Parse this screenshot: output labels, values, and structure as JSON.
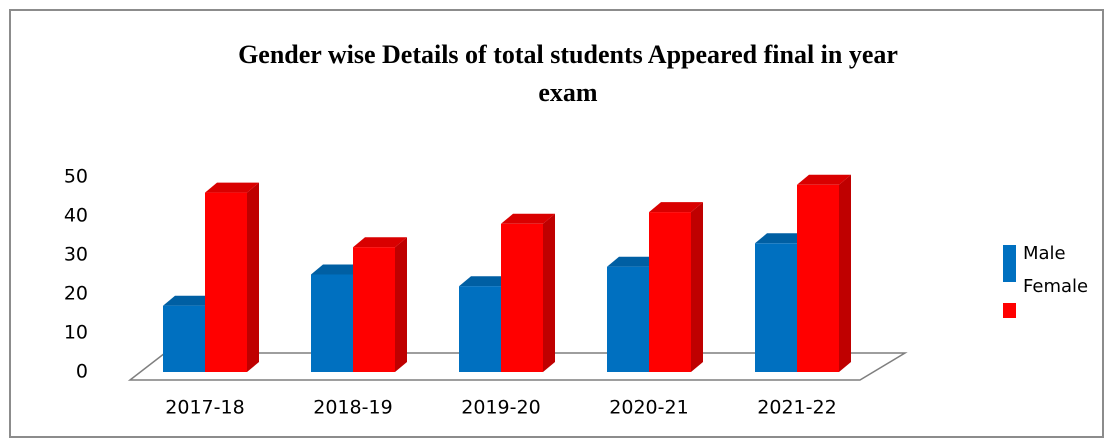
{
  "chart_data": {
    "type": "bar3d",
    "title": [
      "Gender wise Details of total students Appeared final in year",
      "exam"
    ],
    "categories": [
      "2017-18",
      "2018-19",
      "2019-20",
      "2020-21",
      "2021-22"
    ],
    "series": [
      {
        "name": "Male",
        "color": "#0070c0",
        "values": [
          17,
          25,
          22,
          27,
          33
        ]
      },
      {
        "name": "Female",
        "color": "#ff0000",
        "values": [
          46,
          32,
          38,
          41,
          48
        ]
      }
    ],
    "ylim": [
      0,
      50
    ],
    "yticks": [
      0,
      10,
      20,
      30,
      40,
      50
    ],
    "legend": "right"
  }
}
